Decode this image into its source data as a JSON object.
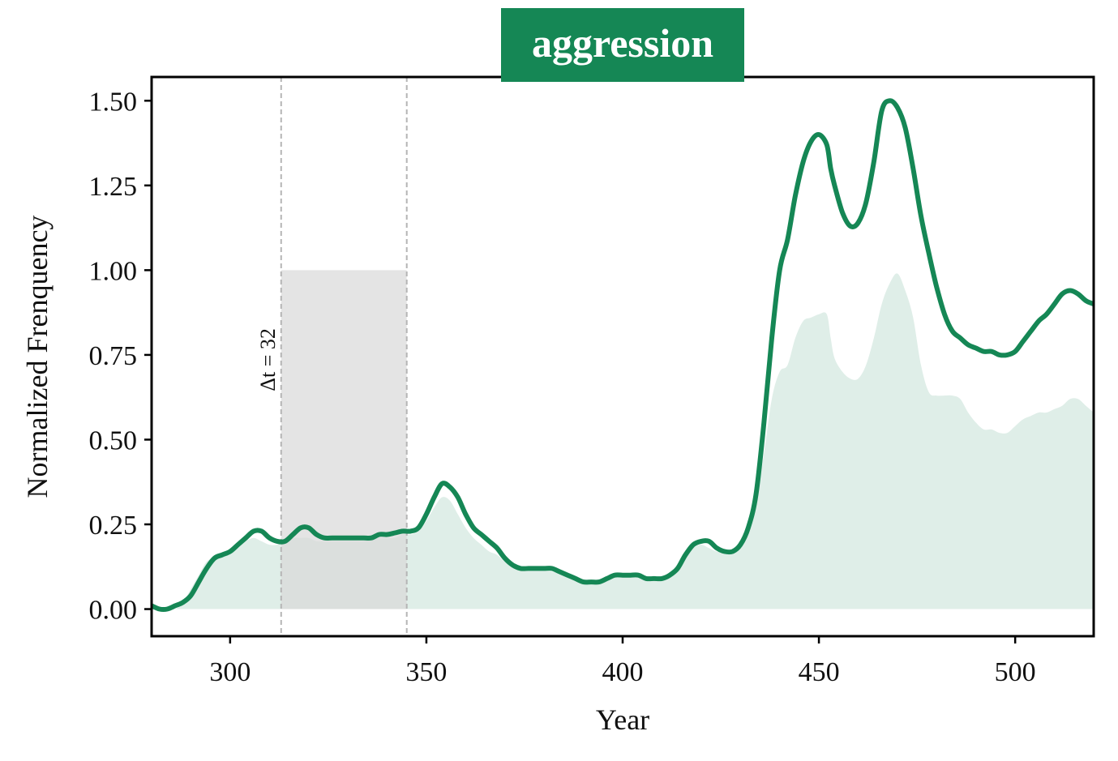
{
  "chart_data": {
    "type": "line",
    "title": "aggression",
    "xlabel": "Year",
    "ylabel": "Normalized Frenquency",
    "xlim": [
      280,
      520
    ],
    "ylim": [
      -0.08,
      1.57
    ],
    "xticks": [
      300,
      350,
      400,
      450,
      500
    ],
    "yticks": [
      0.0,
      0.25,
      0.5,
      0.75,
      1.0,
      1.25,
      1.5
    ],
    "xtick_labels": [
      "300",
      "350",
      "400",
      "450",
      "500"
    ],
    "ytick_labels": [
      "0.00",
      "0.25",
      "0.50",
      "0.75",
      "1.00",
      "1.25",
      "1.50"
    ],
    "grid": false,
    "highlight": {
      "x0": 313,
      "x1": 345,
      "y0": 0.0,
      "y1": 1.0,
      "label": "Δt = 32"
    },
    "colors": {
      "line": "#158755",
      "area": "#dfeee8",
      "highlight": "#d9d9d9",
      "title_bg": "#158755"
    },
    "series": [
      {
        "kind": "line",
        "x": [
          280,
          282,
          284,
          286,
          288,
          290,
          292,
          294,
          296,
          298,
          300,
          302,
          304,
          306,
          308,
          310,
          312,
          314,
          316,
          318,
          320,
          322,
          324,
          326,
          328,
          330,
          332,
          334,
          336,
          338,
          340,
          342,
          344,
          346,
          348,
          350,
          352,
          354,
          356,
          358,
          360,
          362,
          364,
          366,
          368,
          370,
          372,
          374,
          376,
          378,
          380,
          382,
          384,
          386,
          388,
          390,
          392,
          394,
          396,
          398,
          400,
          402,
          404,
          406,
          408,
          410,
          412,
          414,
          416,
          418,
          420,
          422,
          424,
          426,
          428,
          430,
          432,
          434,
          436,
          438,
          440,
          442,
          444,
          446,
          448,
          450,
          452,
          453,
          454,
          456,
          458,
          460,
          462,
          464,
          466,
          468,
          470,
          472,
          474,
          476,
          478,
          480,
          482,
          484,
          486,
          488,
          490,
          492,
          494,
          496,
          498,
          500,
          502,
          504,
          506,
          508,
          510,
          512,
          514,
          516,
          518,
          520
        ],
        "y": [
          0.01,
          0.0,
          0.0,
          0.01,
          0.02,
          0.04,
          0.08,
          0.12,
          0.15,
          0.16,
          0.17,
          0.19,
          0.21,
          0.23,
          0.23,
          0.21,
          0.2,
          0.2,
          0.22,
          0.24,
          0.24,
          0.22,
          0.21,
          0.21,
          0.21,
          0.21,
          0.21,
          0.21,
          0.21,
          0.22,
          0.22,
          0.225,
          0.23,
          0.23,
          0.24,
          0.28,
          0.33,
          0.37,
          0.36,
          0.33,
          0.28,
          0.24,
          0.22,
          0.2,
          0.18,
          0.15,
          0.13,
          0.12,
          0.12,
          0.12,
          0.12,
          0.12,
          0.11,
          0.1,
          0.09,
          0.08,
          0.08,
          0.08,
          0.09,
          0.1,
          0.1,
          0.1,
          0.1,
          0.09,
          0.09,
          0.09,
          0.1,
          0.12,
          0.16,
          0.19,
          0.2,
          0.2,
          0.18,
          0.17,
          0.17,
          0.19,
          0.24,
          0.34,
          0.55,
          0.8,
          1.0,
          1.09,
          1.22,
          1.32,
          1.38,
          1.4,
          1.37,
          1.3,
          1.25,
          1.17,
          1.13,
          1.14,
          1.2,
          1.32,
          1.47,
          1.5,
          1.48,
          1.42,
          1.3,
          1.16,
          1.05,
          0.95,
          0.87,
          0.82,
          0.8,
          0.78,
          0.77,
          0.76,
          0.76,
          0.75,
          0.75,
          0.76,
          0.79,
          0.82,
          0.85,
          0.87,
          0.9,
          0.93,
          0.94,
          0.93,
          0.91,
          0.9
        ]
      },
      {
        "kind": "area",
        "x": [
          280,
          282,
          284,
          286,
          288,
          290,
          292,
          294,
          296,
          298,
          300,
          302,
          304,
          306,
          308,
          310,
          312,
          314,
          316,
          318,
          320,
          322,
          324,
          326,
          328,
          330,
          332,
          334,
          336,
          338,
          340,
          342,
          344,
          346,
          348,
          350,
          352,
          354,
          356,
          358,
          360,
          362,
          364,
          366,
          368,
          370,
          372,
          374,
          376,
          378,
          380,
          382,
          384,
          386,
          388,
          390,
          392,
          394,
          396,
          398,
          400,
          402,
          404,
          406,
          408,
          410,
          412,
          414,
          416,
          418,
          420,
          422,
          424,
          426,
          428,
          430,
          432,
          434,
          436,
          438,
          440,
          442,
          444,
          446,
          448,
          450,
          452,
          453,
          454,
          456,
          458,
          460,
          462,
          464,
          466,
          468,
          470,
          472,
          474,
          476,
          478,
          480,
          482,
          484,
          486,
          488,
          490,
          492,
          494,
          496,
          498,
          500,
          502,
          504,
          506,
          508,
          510,
          512,
          514,
          516,
          518,
          520
        ],
        "y": [
          0.0,
          0.0,
          0.0,
          0.0,
          0.02,
          0.06,
          0.1,
          0.14,
          0.15,
          0.16,
          0.17,
          0.18,
          0.2,
          0.21,
          0.2,
          0.19,
          0.19,
          0.2,
          0.21,
          0.21,
          0.21,
          0.2,
          0.2,
          0.2,
          0.2,
          0.2,
          0.2,
          0.2,
          0.21,
          0.21,
          0.21,
          0.21,
          0.22,
          0.22,
          0.23,
          0.26,
          0.3,
          0.33,
          0.32,
          0.28,
          0.24,
          0.21,
          0.19,
          0.17,
          0.16,
          0.14,
          0.13,
          0.12,
          0.12,
          0.12,
          0.12,
          0.11,
          0.11,
          0.1,
          0.09,
          0.08,
          0.08,
          0.08,
          0.09,
          0.1,
          0.1,
          0.1,
          0.1,
          0.09,
          0.09,
          0.09,
          0.1,
          0.12,
          0.15,
          0.18,
          0.19,
          0.18,
          0.17,
          0.17,
          0.17,
          0.19,
          0.24,
          0.32,
          0.46,
          0.62,
          0.7,
          0.72,
          0.8,
          0.85,
          0.86,
          0.87,
          0.87,
          0.8,
          0.74,
          0.7,
          0.68,
          0.68,
          0.72,
          0.8,
          0.9,
          0.96,
          0.99,
          0.94,
          0.86,
          0.72,
          0.64,
          0.63,
          0.63,
          0.63,
          0.62,
          0.58,
          0.55,
          0.53,
          0.53,
          0.52,
          0.52,
          0.54,
          0.56,
          0.57,
          0.58,
          0.58,
          0.59,
          0.6,
          0.62,
          0.62,
          0.6,
          0.58
        ]
      }
    ]
  }
}
